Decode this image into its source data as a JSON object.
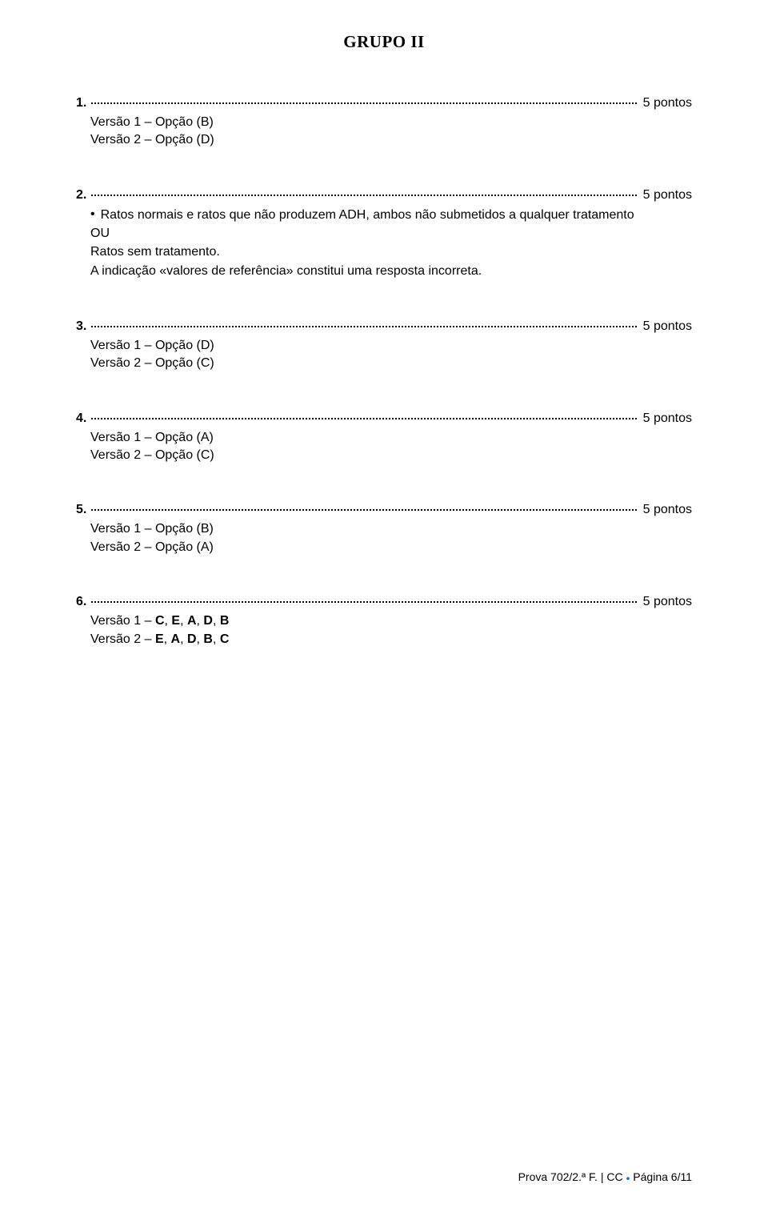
{
  "groupTitle": "GRUPO II",
  "questions": {
    "q1": {
      "number": "1.",
      "points": "5 pontos",
      "answers": [
        "Versão 1 ‒ Opção (B)",
        "Versão 2 ‒ Opção (D)"
      ]
    },
    "q2": {
      "number": "2.",
      "points": "5 pontos",
      "bulletText": "Ratos normais e ratos que não produzem ADH, ambos não submetidos a qualquer tratamento",
      "ou": "OU",
      "subLines": [
        "Ratos sem tratamento.",
        "A indicação «valores de referência» constitui uma resposta incorreta."
      ]
    },
    "q3": {
      "number": "3.",
      "points": "5 pontos",
      "answers": [
        "Versão 1 ‒ Opção (D)",
        "Versão 2 ‒ Opção (C)"
      ]
    },
    "q4": {
      "number": "4.",
      "points": "5 pontos",
      "answers": [
        "Versão 1 ‒ Opção (A)",
        "Versão 2 ‒ Opção (C)"
      ]
    },
    "q5": {
      "number": "5.",
      "points": "5 pontos",
      "answers": [
        "Versão 1 ‒ Opção (B)",
        "Versão 2 ‒ Opção (A)"
      ]
    },
    "q6": {
      "number": "6.",
      "points": "5 pontos",
      "answersSpecial": {
        "v1_prefix": "Versão 1 ‒ ",
        "v1_bold": "C",
        "v1_mid1": ", ",
        "v1_b2": "E",
        "v1_mid2": ", ",
        "v1_b3": "A",
        "v1_mid3": ", ",
        "v1_b4": "D",
        "v1_mid4": ", ",
        "v1_b5": "B",
        "v2_prefix": "Versão 2 ‒ ",
        "v2_b1": "E",
        "v2_mid1": ", ",
        "v2_b2": "A",
        "v2_mid2": ", ",
        "v2_b3": "D",
        "v2_mid3": ", ",
        "v2_b4": "B",
        "v2_mid4": ", ",
        "v2_b5": "C"
      }
    }
  },
  "footer": {
    "prova": "Prova 702/2.ª F.",
    "sep": " | ",
    "cc": "CC",
    "page": " Página 6/11"
  },
  "colors": {
    "text": "#000000",
    "background": "#ffffff",
    "dotBlue": "#1a6fb5"
  }
}
